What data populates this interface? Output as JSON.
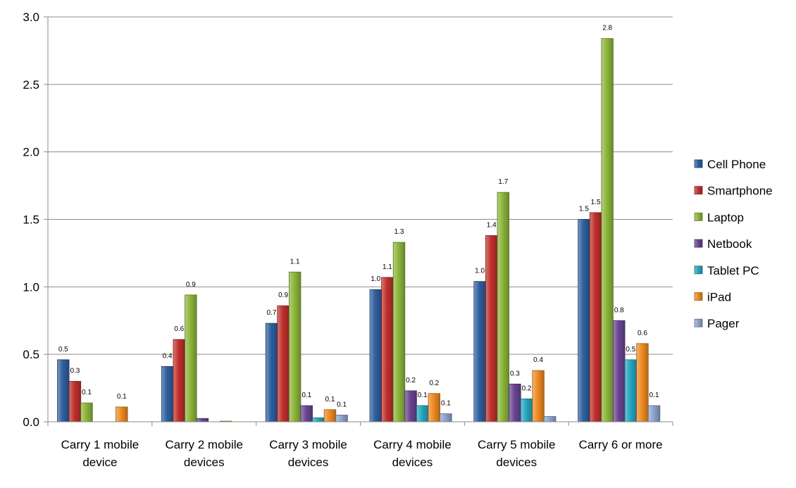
{
  "chart_data": {
    "type": "bar",
    "categories": [
      [
        "Carry 1 mobile",
        "device"
      ],
      [
        "Carry 2 mobile",
        "devices"
      ],
      [
        "Carry 3 mobile",
        "devices"
      ],
      [
        "Carry 4 mobile",
        "devices"
      ],
      [
        "Carry 5 mobile",
        "devices"
      ],
      [
        "Carry 6 or more"
      ]
    ],
    "ylim": [
      0,
      3.0
    ],
    "yticks": [
      "0.0",
      "0.5",
      "1.0",
      "1.5",
      "2.0",
      "2.5",
      "3.0"
    ],
    "grid": true,
    "legend_position": "right",
    "series": [
      {
        "name": "Cell Phone",
        "color": "#2e5f9e",
        "values": [
          0.46,
          0.41,
          0.73,
          0.98,
          1.04,
          1.5
        ],
        "labels": [
          "0.5",
          "0.4",
          "0.7",
          "1.0",
          "1.0",
          "1.5"
        ]
      },
      {
        "name": "Smartphone",
        "color": "#c0302c",
        "values": [
          0.3,
          0.61,
          0.86,
          1.07,
          1.38,
          1.55
        ],
        "labels": [
          "0.3",
          "0.6",
          "0.9",
          "1.1",
          "1.4",
          "1.5"
        ]
      },
      {
        "name": "Laptop",
        "color": "#8cb53a",
        "values": [
          0.14,
          0.94,
          1.11,
          1.33,
          1.7,
          2.84
        ],
        "labels": [
          "0.1",
          "0.9",
          "1.1",
          "1.3",
          "1.7",
          "2.8"
        ]
      },
      {
        "name": "Netbook",
        "color": "#6a4592",
        "values": [
          0.0,
          0.025,
          0.12,
          0.23,
          0.28,
          0.75
        ],
        "labels": [
          "",
          "",
          "0.1",
          "0.2",
          "0.3",
          "0.8"
        ]
      },
      {
        "name": "Tablet PC",
        "color": "#27a6c0",
        "values": [
          0.0,
          0.0,
          0.03,
          0.12,
          0.17,
          0.46
        ],
        "labels": [
          "",
          "",
          "",
          "0.1",
          "0.2",
          "0.5"
        ]
      },
      {
        "name": "iPad",
        "color": "#ee8a22",
        "values": [
          0.11,
          0.005,
          0.09,
          0.21,
          0.38,
          0.58
        ],
        "labels": [
          "0.1",
          "",
          "0.1",
          "0.2",
          "0.4",
          "0.6"
        ]
      },
      {
        "name": "Pager",
        "color": "#8ea3cc",
        "values": [
          0.0,
          0.0,
          0.05,
          0.06,
          0.04,
          0.12
        ],
        "labels": [
          "",
          "",
          "0.1",
          "0.1",
          "",
          "0.1"
        ]
      }
    ]
  }
}
